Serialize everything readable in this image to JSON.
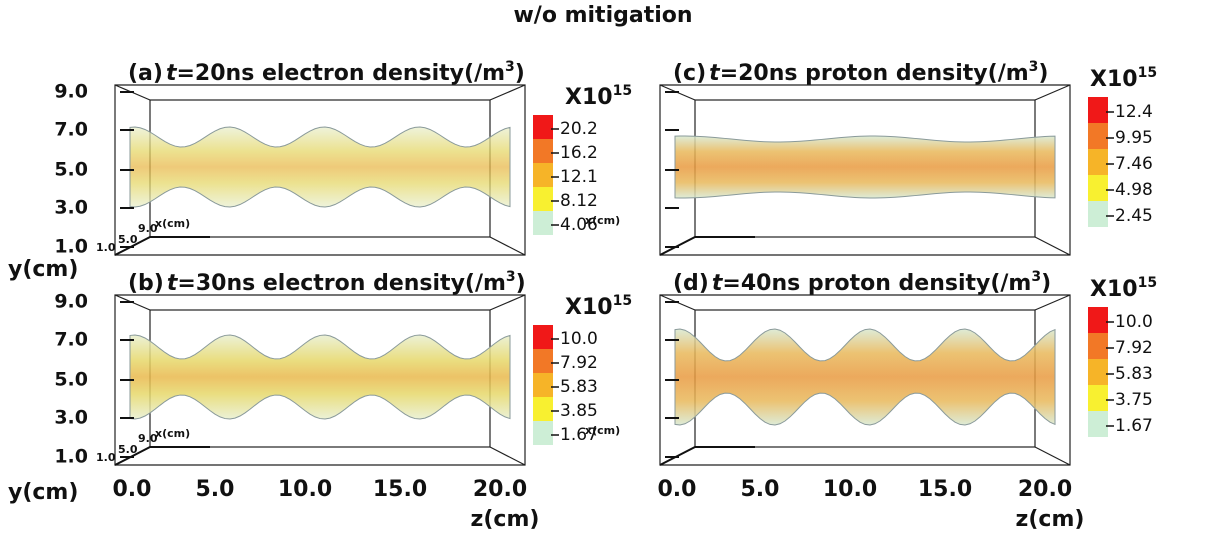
{
  "title": "w/o mitigation",
  "panels": [
    {
      "label": "(a)",
      "var": "t",
      "title": "=20ns electron density(/m",
      "title_sup": "3",
      "title_end": ")",
      "yticks": [
        "9.0",
        "7.0",
        "5.0",
        "3.0",
        "1.0"
      ],
      "small_axes": [
        "9.0",
        "5.0",
        "1.0",
        "x(cm)"
      ],
      "colorbar": {
        "prefix": "X10",
        "exponent": "15",
        "labels": [
          "20.2",
          "16.2",
          "12.1",
          "8.12",
          "4.06"
        ]
      },
      "y_axis_label": "y(cm)"
    },
    {
      "label": "(c)",
      "var": "t",
      "title": "=20ns proton density(/m",
      "title_sup": "3",
      "title_end": ")",
      "small_axes": [
        "x(cm)"
      ],
      "colorbar": {
        "prefix": "X10",
        "exponent": "15",
        "labels": [
          "12.4",
          "9.95",
          "7.46",
          "4.98",
          "2.45"
        ]
      }
    },
    {
      "label": "(b)",
      "var": "t",
      "title": "=30ns electron density(/m",
      "title_sup": "3",
      "title_end": ")",
      "yticks": [
        "9.0",
        "7.0",
        "5.0",
        "3.0",
        "1.0"
      ],
      "small_axes": [
        "9.0",
        "5.0",
        "1.0",
        "x(cm)"
      ],
      "colorbar": {
        "prefix": "X10",
        "exponent": "15",
        "labels": [
          "10.0",
          "7.92",
          "5.83",
          "3.85",
          "1.67"
        ]
      },
      "y_axis_label": "y(cm)",
      "zticks": [
        "0.0",
        "5.0",
        "10.0",
        "15.0",
        "20.0"
      ],
      "z_axis_label": "z(cm)"
    },
    {
      "label": "(d)",
      "var": "t",
      "title": "=40ns proton density(/m",
      "title_sup": "3",
      "title_end": ")",
      "small_axes": [
        "x(cm)"
      ],
      "colorbar": {
        "prefix": "X10",
        "exponent": "15",
        "labels": [
          "10.0",
          "7.92",
          "5.83",
          "3.75",
          "1.67"
        ]
      },
      "zticks": [
        "0.0",
        "5.0",
        "10.0",
        "15.0",
        "20.0"
      ],
      "z_axis_label": "z(cm)"
    }
  ]
}
